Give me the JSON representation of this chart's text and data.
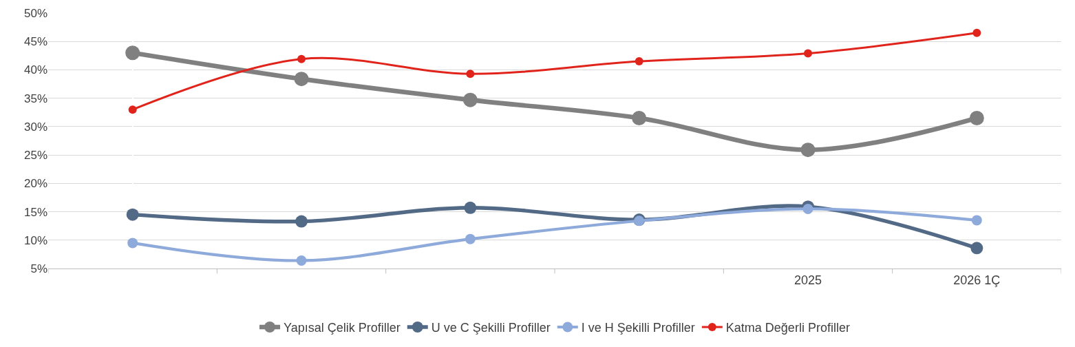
{
  "chart_data": {
    "type": "line",
    "categories": [
      null,
      null,
      null,
      null,
      "2025",
      "2026 1Ç"
    ],
    "series": [
      {
        "name": "Yapısal Çelik Profiller",
        "color": "#808080",
        "values": [
          43.0,
          38.4,
          34.7,
          31.5,
          25.9,
          31.5
        ]
      },
      {
        "name": "U ve C Şekilli Profiller",
        "color": "#536a87",
        "values": [
          14.5,
          13.3,
          15.7,
          13.6,
          15.9,
          8.6
        ]
      },
      {
        "name": "I ve H Şekilli Profiller",
        "color": "#8eaadb",
        "values": [
          9.5,
          6.4,
          10.2,
          13.4,
          15.5,
          13.5
        ]
      },
      {
        "name": "Katma Değerli Profiller",
        "color": "#e0241b",
        "values": [
          33.0,
          41.9,
          39.3,
          41.5,
          42.9,
          46.5
        ]
      }
    ],
    "ylim": [
      5,
      50
    ],
    "yticks": [
      {
        "value": 5,
        "label": "5%"
      },
      {
        "value": 10,
        "label": "10%"
      },
      {
        "value": 15,
        "label": "15%"
      },
      {
        "value": 20,
        "label": "20%"
      },
      {
        "value": 25,
        "label": "25%"
      },
      {
        "value": 30,
        "label": "30%"
      },
      {
        "value": 35,
        "label": "35%"
      },
      {
        "value": 40,
        "label": "40%"
      },
      {
        "value": 45,
        "label": "45%"
      },
      {
        "value": 50,
        "label": "50%"
      }
    ],
    "grid": "y",
    "legend": "bottom",
    "marker": "circle",
    "line_style": "solid"
  }
}
